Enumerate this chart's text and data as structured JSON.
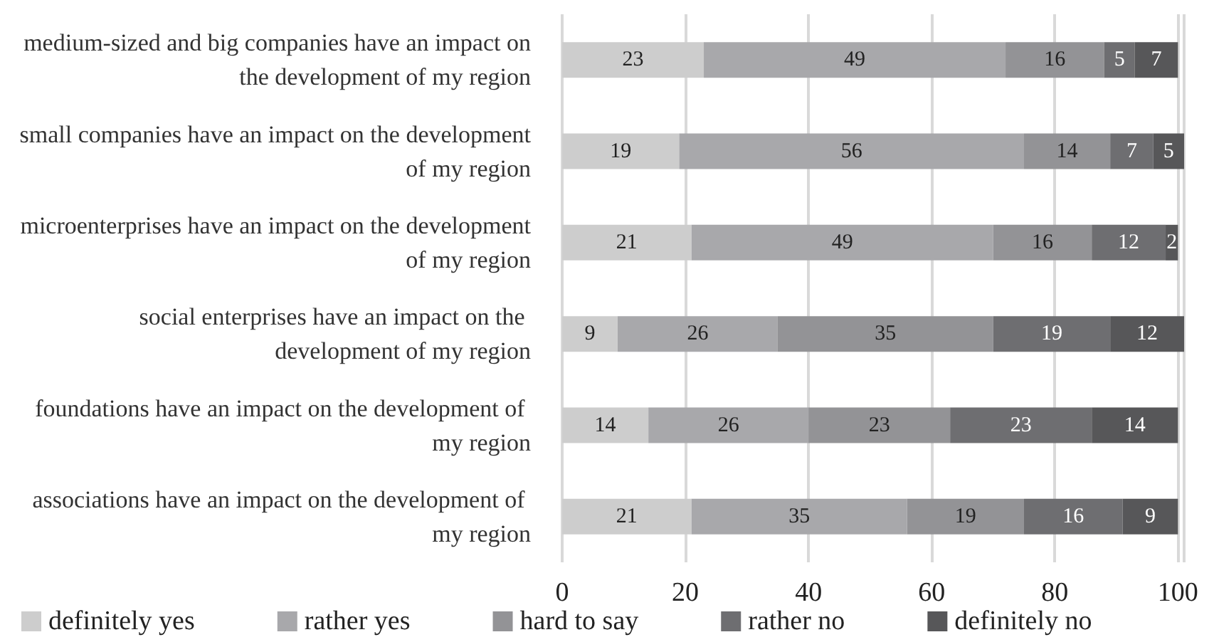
{
  "chart_data": {
    "type": "bar",
    "orientation": "horizontal",
    "stacked": true,
    "data_labels": true,
    "grid": "x",
    "legend": "bottom",
    "categories": [
      "medium-sized and big companies have an impact on the development of my region",
      "small companies have an impact on the development of my region",
      "microenterprises have an impact on the development of my region",
      "social enterprises have an impact on the development of my region",
      "foundations have an impact on the development of my region",
      "associations have an impact on the development of my region"
    ],
    "xlim": [
      0,
      101
    ],
    "xticks": [
      0,
      20,
      40,
      60,
      80,
      100
    ],
    "series": [
      {
        "name": "definitely yes",
        "color": "#cdcdcd",
        "values": [
          23,
          19,
          21,
          9,
          14,
          21
        ]
      },
      {
        "name": "rather yes",
        "color": "#a8a8ab",
        "values": [
          49,
          56,
          49,
          26,
          26,
          35
        ]
      },
      {
        "name": "hard to say",
        "color": "#939396",
        "values": [
          16,
          14,
          16,
          35,
          23,
          19
        ]
      },
      {
        "name": "rather no",
        "color": "#6e6e71",
        "values": [
          5,
          7,
          12,
          19,
          23,
          16
        ]
      },
      {
        "name": "definitely no",
        "color": "#575759",
        "values": [
          7,
          5,
          2,
          12,
          14,
          9
        ]
      }
    ]
  }
}
